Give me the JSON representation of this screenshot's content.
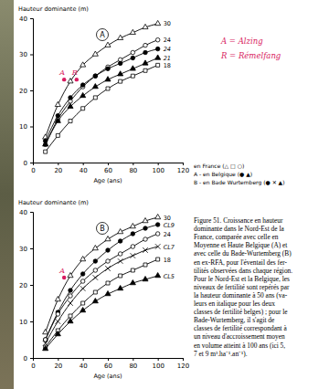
{
  "chart_data": [
    {
      "type": "line",
      "title": "A",
      "ylabel": "Hauteur dominante (m)",
      "xlabel": "Age (ans)",
      "xlim": [
        0,
        120
      ],
      "ylim": [
        0,
        40
      ],
      "xticks": [
        0,
        20,
        40,
        60,
        80,
        100,
        120
      ],
      "yticks": [
        0,
        10,
        20,
        30,
        40
      ],
      "x": [
        10,
        20,
        30,
        40,
        50,
        60,
        70,
        80,
        90,
        100
      ],
      "series": [
        {
          "name": "30",
          "color": "#000000",
          "marker": "triangle-open",
          "values": [
            7,
            16,
            22.5,
            27,
            30,
            32.5,
            34.5,
            36,
            37.5,
            38.5
          ]
        },
        {
          "name": "24",
          "color": "#000000",
          "marker": "circle-open",
          "values": [
            5,
            12,
            17,
            21,
            24,
            26.5,
            28.5,
            30.5,
            32.5,
            34
          ]
        },
        {
          "name": "24",
          "color": "#000000",
          "marker": "circle-filled",
          "values": [
            6,
            13,
            18,
            21.5,
            24,
            26,
            27.5,
            29,
            30.5,
            31.5
          ]
        },
        {
          "name": "21",
          "color": "#000000",
          "marker": "triangle-filled",
          "values": [
            5,
            11.5,
            15.5,
            18.5,
            21,
            23,
            24.5,
            26,
            27.5,
            29
          ]
        },
        {
          "name": "18",
          "color": "#000000",
          "marker": "square-open",
          "values": [
            3,
            7.5,
            11.5,
            15,
            18,
            20.5,
            22.5,
            24,
            25.5,
            27
          ]
        }
      ],
      "points": [
        {
          "label": "A",
          "x": 25,
          "y": 23,
          "color": "#d81b60"
        },
        {
          "label": "R",
          "x": 35,
          "y": 23,
          "color": "#d81b60"
        }
      ],
      "annotations": [
        "en France (△ □ ○)",
        "A - en Belgique (● ▲)",
        "B - en Bade Wurtemberg (● ✕ ▲)"
      ]
    },
    {
      "type": "line",
      "title": "B",
      "ylabel": "Hauteur dominante (m)",
      "xlabel": "Age (ans)",
      "xlim": [
        0,
        120
      ],
      "ylim": [
        0,
        40
      ],
      "xticks": [
        0,
        20,
        40,
        60,
        80,
        100,
        120
      ],
      "yticks": [
        0,
        10,
        20,
        30,
        40
      ],
      "x": [
        10,
        20,
        30,
        40,
        50,
        60,
        70,
        80,
        90,
        100
      ],
      "series": [
        {
          "name": "30",
          "color": "#000000",
          "marker": "triangle-open",
          "values": [
            7,
            16,
            22.5,
            27,
            30,
            32.5,
            34.5,
            36,
            37.5,
            38.5
          ]
        },
        {
          "name": "CL9",
          "color": "#000000",
          "marker": "circle-filled",
          "values": [
            5,
            12.5,
            18.5,
            23,
            26.5,
            29.5,
            32,
            34,
            35.5,
            36.5
          ]
        },
        {
          "name": "24",
          "color": "#000000",
          "marker": "circle-open",
          "values": [
            5,
            12,
            17,
            21,
            24,
            26.5,
            28.5,
            30.5,
            32.5,
            34
          ]
        },
        {
          "name": "CL7",
          "color": "#000000",
          "marker": "cross",
          "values": [
            4,
            10,
            15,
            19,
            22,
            24.5,
            26.5,
            28,
            29.5,
            30.5
          ]
        },
        {
          "name": "18",
          "color": "#000000",
          "marker": "square-open",
          "values": [
            3,
            7.5,
            11.5,
            15,
            18,
            20.5,
            22.5,
            24,
            25.5,
            27
          ]
        },
        {
          "name": "CL5",
          "color": "#000000",
          "marker": "triangle-filled",
          "values": [
            2.5,
            6.5,
            10,
            13,
            15.5,
            17.5,
            19,
            20.5,
            21.5,
            22.5
          ]
        }
      ],
      "points": [
        {
          "label": "A",
          "x": 25,
          "y": 22,
          "color": "#d81b60"
        }
      ]
    }
  ],
  "notes": [
    "A = Alzing",
    "R = Rémelfang"
  ],
  "caption": [
    "Figure 51. Croissance en hauteur",
    "dominante dans le Nord-Est de la",
    "France, comparée avec celle en",
    "Moyenne et Haute Belgique (A) et",
    "avec celle du Bade-Wurtemberg (B)",
    "en ex-RFA, pour l'éventail des fer-",
    "tilités observées dans chaque région.",
    "Pour le Nord-Est et la Belgique, les",
    "niveaux de fertilité sont repérés par",
    "la hauteur dominante à 50 ans (va-",
    "leurs en italique pour les deux",
    "classes de fertilité belges) ; pour le",
    "Bade-Wurtemberg, il s'agit de",
    "classes de fertilité correspondant à",
    "un niveau d'accroissement moyen",
    "en volume atteint à 100 ans (ici 5,",
    "7 et 9 m³.ha⁻¹.an⁻¹)."
  ]
}
